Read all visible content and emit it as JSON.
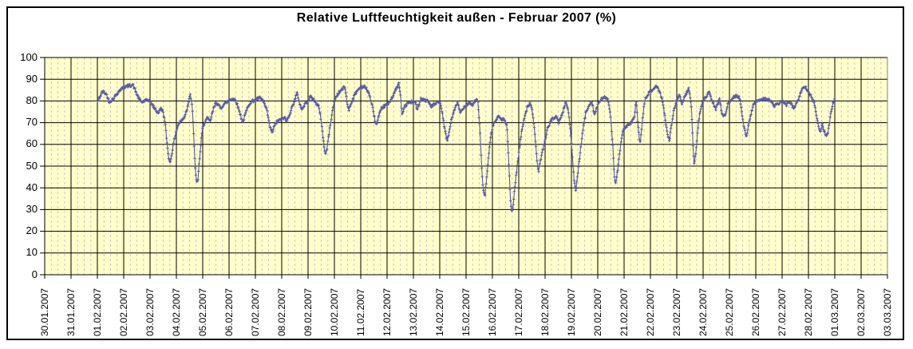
{
  "chart_data": {
    "type": "line",
    "title": "Relative Luftfeuchtigkeit außen - Februar 2007 (%)",
    "plot_background": "#FFFFCC",
    "grid": {
      "major_color": "#000000",
      "minor_color": "#C8C8C8",
      "minor_divisions_per_day": 4,
      "border_color": "#808080"
    },
    "x_axis": {
      "tick_labels": [
        "30.01.2007",
        "31.01.2007",
        "01.02.2007",
        "02.02.2007",
        "03.02.2007",
        "04.02.2007",
        "05.02.2007",
        "06.02.2007",
        "07.02.2007",
        "08.02.2007",
        "09.02.2007",
        "10.02.2007",
        "11.02.2007",
        "12.02.2007",
        "13.02.2007",
        "14.02.2007",
        "15.02.2007",
        "16.02.2007",
        "17.02.2007",
        "18.02.2007",
        "19.02.2007",
        "20.02.2007",
        "21.02.2007",
        "22.02.2007",
        "23.02.2007",
        "24.02.2007",
        "25.02.2007",
        "26.02.2007",
        "27.02.2007",
        "28.02.2007",
        "01.03.2007",
        "02.03.2007",
        "03.03.2007"
      ],
      "days_span": 32
    },
    "y_axis": {
      "ticks": [
        0,
        10,
        20,
        30,
        40,
        50,
        60,
        70,
        80,
        90,
        100
      ],
      "min": 0,
      "max": 100
    },
    "series": [
      {
        "color": "#5B5BA3",
        "marker": "plus",
        "points_day_value": [
          [
            2.0,
            80
          ],
          [
            2.1,
            82
          ],
          [
            2.2,
            84.5
          ],
          [
            2.35,
            83
          ],
          [
            2.45,
            79.5
          ],
          [
            2.6,
            81
          ],
          [
            2.75,
            83.5
          ],
          [
            2.9,
            85.5
          ],
          [
            3.05,
            86.5
          ],
          [
            3.2,
            87
          ],
          [
            3.35,
            87.5
          ],
          [
            3.5,
            83
          ],
          [
            3.6,
            80.5
          ],
          [
            3.7,
            79.5
          ],
          [
            3.8,
            80
          ],
          [
            3.95,
            80.5
          ],
          [
            4.05,
            79
          ],
          [
            4.15,
            77
          ],
          [
            4.3,
            74.5
          ],
          [
            4.42,
            76.5
          ],
          [
            4.5,
            75
          ],
          [
            4.58,
            69
          ],
          [
            4.65,
            60
          ],
          [
            4.72,
            53
          ],
          [
            4.76,
            51.5
          ],
          [
            4.83,
            56
          ],
          [
            4.92,
            62
          ],
          [
            4.99,
            66
          ],
          [
            5.08,
            69.5
          ],
          [
            5.2,
            71
          ],
          [
            5.3,
            72.5
          ],
          [
            5.42,
            77
          ],
          [
            5.52,
            83.5
          ],
          [
            5.6,
            78
          ],
          [
            5.66,
            63
          ],
          [
            5.72,
            48
          ],
          [
            5.77,
            42
          ],
          [
            5.82,
            44
          ],
          [
            5.9,
            56
          ],
          [
            5.98,
            66.5
          ],
          [
            6.08,
            70.5
          ],
          [
            6.18,
            72
          ],
          [
            6.28,
            70.5
          ],
          [
            6.4,
            76
          ],
          [
            6.5,
            79.5
          ],
          [
            6.6,
            78
          ],
          [
            6.68,
            76.5
          ],
          [
            6.8,
            78.5
          ],
          [
            6.92,
            79.5
          ],
          [
            7.02,
            80.5
          ],
          [
            7.12,
            81
          ],
          [
            7.25,
            80.5
          ],
          [
            7.4,
            75
          ],
          [
            7.52,
            70
          ],
          [
            7.62,
            74
          ],
          [
            7.75,
            78.5
          ],
          [
            7.9,
            80
          ],
          [
            8.02,
            80.5
          ],
          [
            8.15,
            81.5
          ],
          [
            8.3,
            80
          ],
          [
            8.45,
            75
          ],
          [
            8.55,
            68
          ],
          [
            8.64,
            65.5
          ],
          [
            8.75,
            69.5
          ],
          [
            8.88,
            71
          ],
          [
            9.0,
            71.5
          ],
          [
            9.1,
            72.5
          ],
          [
            9.18,
            70.5
          ],
          [
            9.3,
            74
          ],
          [
            9.45,
            79
          ],
          [
            9.58,
            83.5
          ],
          [
            9.68,
            79
          ],
          [
            9.77,
            76
          ],
          [
            9.88,
            78.5
          ],
          [
            10.0,
            80.5
          ],
          [
            10.1,
            82
          ],
          [
            10.25,
            80
          ],
          [
            10.4,
            77.5
          ],
          [
            10.5,
            71
          ],
          [
            10.6,
            60
          ],
          [
            10.66,
            55
          ],
          [
            10.73,
            59
          ],
          [
            10.82,
            67
          ],
          [
            10.92,
            75
          ],
          [
            11.02,
            81
          ],
          [
            11.15,
            83.5
          ],
          [
            11.3,
            85.5
          ],
          [
            11.4,
            86.5
          ],
          [
            11.48,
            79
          ],
          [
            11.55,
            76
          ],
          [
            11.65,
            79.5
          ],
          [
            11.8,
            83.5
          ],
          [
            11.92,
            85.5
          ],
          [
            12.02,
            86.5
          ],
          [
            12.15,
            86.5
          ],
          [
            12.3,
            84
          ],
          [
            12.45,
            77
          ],
          [
            12.55,
            70.5
          ],
          [
            12.6,
            69
          ],
          [
            12.7,
            73.5
          ],
          [
            12.82,
            77
          ],
          [
            12.95,
            78
          ],
          [
            13.05,
            78.5
          ],
          [
            13.2,
            82
          ],
          [
            13.35,
            85.5
          ],
          [
            13.45,
            88
          ],
          [
            13.53,
            80
          ],
          [
            13.57,
            73.5
          ],
          [
            13.65,
            77
          ],
          [
            13.78,
            79
          ],
          [
            13.92,
            79.5
          ],
          [
            14.05,
            79.5
          ],
          [
            14.15,
            76.5
          ],
          [
            14.28,
            81
          ],
          [
            14.4,
            80.5
          ],
          [
            14.55,
            80
          ],
          [
            14.68,
            77.5
          ],
          [
            14.82,
            78.5
          ],
          [
            14.95,
            79.5
          ],
          [
            15.05,
            78
          ],
          [
            15.15,
            70
          ],
          [
            15.25,
            63
          ],
          [
            15.3,
            62
          ],
          [
            15.42,
            70
          ],
          [
            15.55,
            76
          ],
          [
            15.68,
            79
          ],
          [
            15.78,
            74.5
          ],
          [
            15.9,
            77
          ],
          [
            16.0,
            78
          ],
          [
            16.12,
            79.5
          ],
          [
            16.25,
            78
          ],
          [
            16.38,
            81
          ],
          [
            16.45,
            79
          ],
          [
            16.52,
            68
          ],
          [
            16.6,
            48
          ],
          [
            16.66,
            38
          ],
          [
            16.72,
            37
          ],
          [
            16.8,
            47
          ],
          [
            16.9,
            60
          ],
          [
            16.97,
            66
          ],
          [
            17.05,
            69.5
          ],
          [
            17.15,
            71.5
          ],
          [
            17.25,
            73
          ],
          [
            17.35,
            71
          ],
          [
            17.45,
            72
          ],
          [
            17.55,
            69
          ],
          [
            17.62,
            52
          ],
          [
            17.68,
            35
          ],
          [
            17.73,
            29
          ],
          [
            17.78,
            31
          ],
          [
            17.85,
            40
          ],
          [
            17.93,
            49
          ],
          [
            18.0,
            56
          ],
          [
            18.1,
            65
          ],
          [
            18.2,
            72
          ],
          [
            18.32,
            77
          ],
          [
            18.42,
            79
          ],
          [
            18.52,
            75
          ],
          [
            18.62,
            64
          ],
          [
            18.7,
            51
          ],
          [
            18.76,
            48
          ],
          [
            18.83,
            53
          ],
          [
            18.92,
            58
          ],
          [
            19.0,
            62
          ],
          [
            19.1,
            67.5
          ],
          [
            19.2,
            70.5
          ],
          [
            19.32,
            72
          ],
          [
            19.42,
            73
          ],
          [
            19.52,
            70
          ],
          [
            19.65,
            74
          ],
          [
            19.78,
            79.5
          ],
          [
            19.88,
            76
          ],
          [
            19.95,
            68
          ],
          [
            20.03,
            55
          ],
          [
            20.1,
            44
          ],
          [
            20.17,
            38.5
          ],
          [
            20.25,
            47
          ],
          [
            20.35,
            58
          ],
          [
            20.45,
            68
          ],
          [
            20.55,
            74.5
          ],
          [
            20.68,
            78.5
          ],
          [
            20.78,
            80
          ],
          [
            20.87,
            73.5
          ],
          [
            20.95,
            76.5
          ],
          [
            21.02,
            78.5
          ],
          [
            21.12,
            80.5
          ],
          [
            21.25,
            82
          ],
          [
            21.38,
            80.5
          ],
          [
            21.48,
            74
          ],
          [
            21.57,
            60
          ],
          [
            21.63,
            45
          ],
          [
            21.68,
            42.5
          ],
          [
            21.76,
            48
          ],
          [
            21.85,
            58
          ],
          [
            21.93,
            65
          ],
          [
            22.02,
            67.5
          ],
          [
            22.12,
            68.5
          ],
          [
            22.25,
            69.5
          ],
          [
            22.38,
            72
          ],
          [
            22.46,
            80.5
          ],
          [
            22.52,
            70
          ],
          [
            22.58,
            63
          ],
          [
            22.62,
            60.5
          ],
          [
            22.7,
            72
          ],
          [
            22.78,
            80
          ],
          [
            22.9,
            83
          ],
          [
            23.02,
            84.5
          ],
          [
            23.12,
            85.5
          ],
          [
            23.22,
            87
          ],
          [
            23.35,
            84.5
          ],
          [
            23.48,
            79
          ],
          [
            23.58,
            70
          ],
          [
            23.67,
            63
          ],
          [
            23.72,
            62
          ],
          [
            23.8,
            69
          ],
          [
            23.9,
            76.5
          ],
          [
            24.0,
            80
          ],
          [
            24.1,
            82.5
          ],
          [
            24.2,
            79
          ],
          [
            24.32,
            82
          ],
          [
            24.45,
            86
          ],
          [
            24.55,
            78
          ],
          [
            24.62,
            58
          ],
          [
            24.66,
            50.5
          ],
          [
            24.73,
            57
          ],
          [
            24.82,
            70
          ],
          [
            24.92,
            77.5
          ],
          [
            25.02,
            80.5
          ],
          [
            25.12,
            82
          ],
          [
            25.22,
            84
          ],
          [
            25.35,
            80
          ],
          [
            25.48,
            76
          ],
          [
            25.62,
            81
          ],
          [
            25.72,
            74
          ],
          [
            25.82,
            73
          ],
          [
            25.93,
            78
          ],
          [
            26.03,
            80
          ],
          [
            26.15,
            81.5
          ],
          [
            26.28,
            82.5
          ],
          [
            26.4,
            81
          ],
          [
            26.5,
            72
          ],
          [
            26.6,
            65.5
          ],
          [
            26.65,
            64
          ],
          [
            26.73,
            69
          ],
          [
            26.82,
            74
          ],
          [
            26.92,
            78.5
          ],
          [
            27.02,
            80
          ],
          [
            27.12,
            80.5
          ],
          [
            27.25,
            81
          ],
          [
            27.38,
            81
          ],
          [
            27.5,
            80.5
          ],
          [
            27.6,
            79.5
          ],
          [
            27.7,
            77.5
          ],
          [
            27.82,
            78.5
          ],
          [
            27.93,
            79.5
          ],
          [
            28.05,
            79.5
          ],
          [
            28.15,
            78
          ],
          [
            28.25,
            80
          ],
          [
            28.35,
            78.5
          ],
          [
            28.45,
            76.5
          ],
          [
            28.55,
            79
          ],
          [
            28.65,
            82
          ],
          [
            28.75,
            85
          ],
          [
            28.85,
            87
          ],
          [
            28.95,
            85.5
          ],
          [
            29.05,
            83
          ],
          [
            29.15,
            81
          ],
          [
            29.25,
            78
          ],
          [
            29.35,
            70
          ],
          [
            29.45,
            65.5
          ],
          [
            29.52,
            69.5
          ],
          [
            29.58,
            67
          ],
          [
            29.66,
            63.5
          ],
          [
            29.75,
            66
          ],
          [
            29.85,
            74
          ],
          [
            29.93,
            79
          ],
          [
            30.0,
            81
          ]
        ]
      }
    ]
  }
}
